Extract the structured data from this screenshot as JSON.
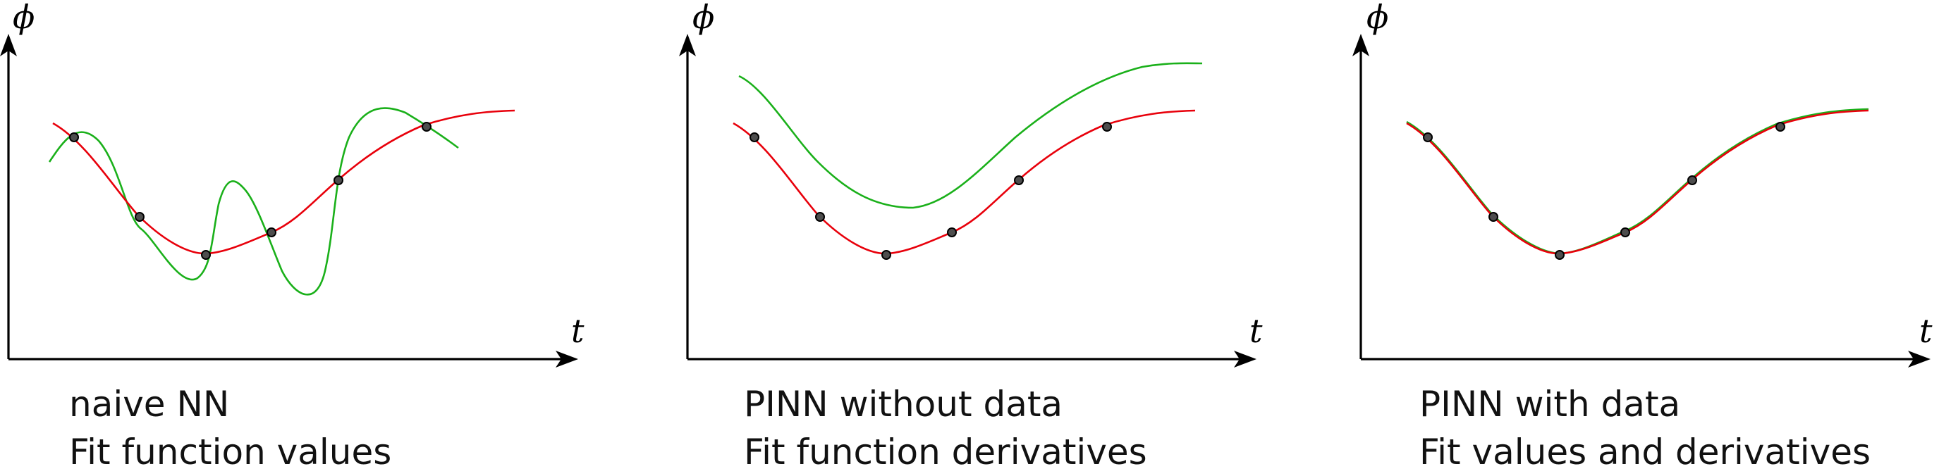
{
  "axes": {
    "y_symbol": "ϕ",
    "x_symbol": "t"
  },
  "panels": [
    {
      "id": "naive",
      "caption_line1": "naive NN",
      "caption_line2": "Fit function values"
    },
    {
      "id": "pinn-nodata",
      "caption_line1": "PINN without data",
      "caption_line2": "Fit function derivatives"
    },
    {
      "id": "pinn-data",
      "caption_line1": "PINN with data",
      "caption_line2": "Fit values and derivatives"
    }
  ],
  "colors": {
    "true_function": "#e8000b",
    "nn_fit": "#1ab01a",
    "data_points": "#4d4d4d",
    "axes": "#000000"
  }
}
